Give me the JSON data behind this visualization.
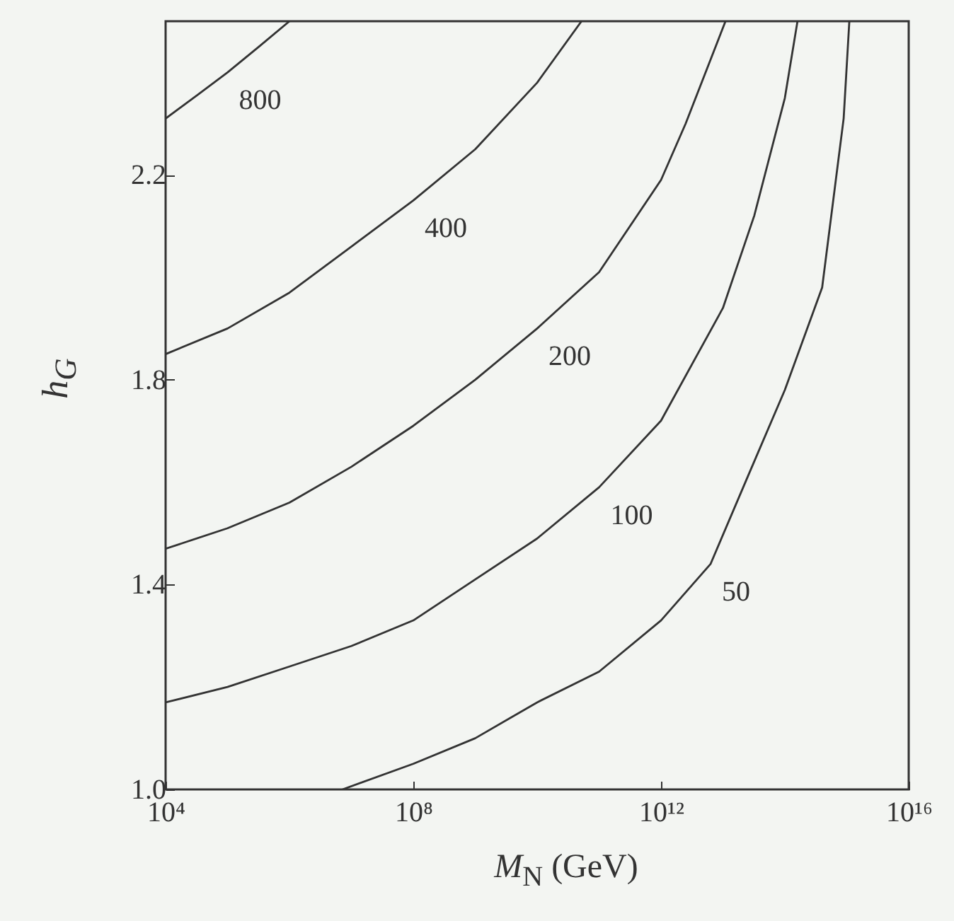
{
  "chart_data": {
    "type": "line",
    "xlabel": "M$_{N}$ (GeV)",
    "ylabel": "h$_{G}$",
    "log": "x",
    "xlim": [
      10000.0,
      1e+16
    ],
    "ylim": [
      1,
      2.5
    ],
    "xticks": [
      {
        "value": 10000.0,
        "label": "10⁴"
      },
      {
        "value": 100000000.0,
        "label": "10⁸"
      },
      {
        "value": 1000000000000.0,
        "label": "10¹²"
      },
      {
        "value": 1e+16,
        "label": "10¹⁶"
      }
    ],
    "yticks": [
      {
        "value": 1,
        "label": "1.0"
      },
      1.4,
      1.8,
      2.2
    ],
    "series": [
      {
        "name": "800",
        "color": "#333333",
        "x": [
          10000.0,
          32000.0,
          100000.0,
          320000.0,
          1000000.0
        ],
        "values": [
          2.31,
          2.355,
          2.4,
          2.45,
          2.5
        ]
      },
      {
        "name": "400",
        "color": "#333333",
        "x": [
          10000.0,
          100000.0,
          1000000.0,
          10000000.0,
          100000000.0,
          1000000000.0,
          10000000000.0,
          52000000000.0
        ],
        "values": [
          1.85,
          1.9,
          1.97,
          2.06,
          2.15,
          2.25,
          2.38,
          2.5
        ]
      },
      {
        "name": "200",
        "color": "#333333",
        "x": [
          10000.0,
          100000.0,
          1000000.0,
          10000000.0,
          100000000.0,
          1000000000.0,
          10000000000.0,
          100000000000.0,
          1000000000000.0,
          2500000000000.0,
          11000000000000.0
        ],
        "values": [
          1.47,
          1.51,
          1.56,
          1.63,
          1.71,
          1.8,
          1.9,
          2.01,
          2.19,
          2.3,
          2.5
        ]
      },
      {
        "name": "100",
        "color": "#333333",
        "x": [
          10000.0,
          100000.0,
          1000000.0,
          10000000.0,
          100000000.0,
          1000000000.0,
          10000000000.0,
          100000000000.0,
          1000000000000.0,
          10000000000000.0,
          32000000000000.0,
          100000000000000.0,
          160000000000000.0
        ],
        "values": [
          1.17,
          1.2,
          1.24,
          1.28,
          1.33,
          1.41,
          1.49,
          1.59,
          1.72,
          1.94,
          2.12,
          2.35,
          2.5
        ]
      },
      {
        "name": "50",
        "color": "#333333",
        "x": [
          7200000.0,
          100000000.0,
          1000000000.0,
          10000000000.0,
          100000000000.0,
          1000000000000.0,
          6300000000000.0,
          25000000000000.0,
          100000000000000.0,
          400000000000000.0,
          890000000000000.0,
          1100000000000000.0
        ],
        "values": [
          1.0,
          1.05,
          1.1,
          1.17,
          1.23,
          1.33,
          1.44,
          1.61,
          1.78,
          1.98,
          2.31,
          2.5
        ]
      }
    ]
  }
}
